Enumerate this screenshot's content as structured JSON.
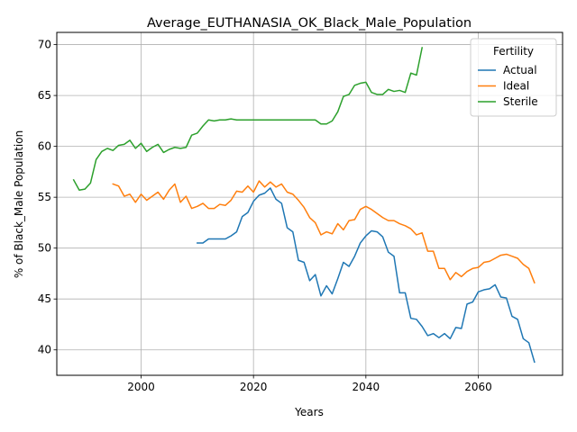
{
  "chart_data": {
    "type": "line",
    "title": "Average_EUTHANASIA_OK_Black_Male_Population",
    "xlabel": "Years",
    "ylabel": "% of Black_Male Population",
    "xlim": [
      1985,
      2075
    ],
    "ylim": [
      37.5,
      71.2
    ],
    "xticks": [
      2000,
      2020,
      2040,
      2060
    ],
    "yticks": [
      40,
      45,
      50,
      55,
      60,
      65,
      70
    ],
    "grid": true,
    "legend": {
      "title": "Fertility",
      "placement": "top-right"
    },
    "series": [
      {
        "name": "Actual",
        "color": "#1f77b4",
        "x": [
          2010,
          2011,
          2012,
          2013,
          2014,
          2015,
          2016,
          2017,
          2018,
          2019,
          2020,
          2021,
          2022,
          2023,
          2024,
          2025,
          2026,
          2027,
          2028,
          2029,
          2030,
          2031,
          2032,
          2033,
          2034,
          2035,
          2036,
          2037,
          2038,
          2039,
          2040,
          2041,
          2042,
          2043,
          2044,
          2045,
          2046,
          2047,
          2048,
          2049,
          2050,
          2051,
          2052,
          2053,
          2054,
          2055,
          2056,
          2057,
          2058,
          2059,
          2060,
          2061,
          2062,
          2063,
          2064,
          2065,
          2066,
          2067,
          2068,
          2069,
          2070
        ],
        "y": [
          50.5,
          50.5,
          50.9,
          50.9,
          50.9,
          50.9,
          51.2,
          51.6,
          53.1,
          53.5,
          54.6,
          55.2,
          55.4,
          55.9,
          54.8,
          54.4,
          52.0,
          51.6,
          48.8,
          48.6,
          46.8,
          47.4,
          45.3,
          46.3,
          45.5,
          47.0,
          48.6,
          48.2,
          49.2,
          50.5,
          51.2,
          51.7,
          51.6,
          51.1,
          49.6,
          49.2,
          45.6,
          45.6,
          43.1,
          43.0,
          42.3,
          41.4,
          41.6,
          41.2,
          41.6,
          41.1,
          42.2,
          42.1,
          44.5,
          44.7,
          45.7,
          45.9,
          46.0,
          46.4,
          45.2,
          45.1,
          43.3,
          43.0,
          41.1,
          40.7,
          38.8
        ]
      },
      {
        "name": "Ideal",
        "color": "#ff7f0e",
        "x": [
          1995,
          1996,
          1997,
          1998,
          1999,
          2000,
          2001,
          2002,
          2003,
          2004,
          2005,
          2006,
          2007,
          2008,
          2009,
          2010,
          2011,
          2012,
          2013,
          2014,
          2015,
          2016,
          2017,
          2018,
          2019,
          2020,
          2021,
          2022,
          2023,
          2024,
          2025,
          2026,
          2027,
          2028,
          2029,
          2030,
          2031,
          2032,
          2033,
          2034,
          2035,
          2036,
          2037,
          2038,
          2039,
          2040,
          2041,
          2042,
          2043,
          2044,
          2045,
          2046,
          2047,
          2048,
          2049,
          2050,
          2051,
          2052,
          2053,
          2054,
          2055,
          2056,
          2057,
          2058,
          2059,
          2060,
          2061,
          2062,
          2063,
          2064,
          2065,
          2066,
          2067,
          2068,
          2069,
          2070
        ],
        "y": [
          56.3,
          56.1,
          55.1,
          55.3,
          54.5,
          55.3,
          54.7,
          55.1,
          55.5,
          54.8,
          55.7,
          56.3,
          54.5,
          55.1,
          53.9,
          54.1,
          54.4,
          53.9,
          53.9,
          54.3,
          54.2,
          54.7,
          55.6,
          55.5,
          56.1,
          55.5,
          56.6,
          56.0,
          56.5,
          56.0,
          56.3,
          55.5,
          55.3,
          54.7,
          54.0,
          53.0,
          52.5,
          51.3,
          51.6,
          51.4,
          52.4,
          51.8,
          52.7,
          52.8,
          53.8,
          54.1,
          53.8,
          53.4,
          53.0,
          52.7,
          52.7,
          52.4,
          52.2,
          51.9,
          51.3,
          51.5,
          49.7,
          49.7,
          48.0,
          48.0,
          46.9,
          47.6,
          47.2,
          47.7,
          48.0,
          48.1,
          48.6,
          48.7,
          49.0,
          49.3,
          49.4,
          49.2,
          49.0,
          48.4,
          48.0,
          46.6
        ]
      },
      {
        "name": "Sterile",
        "color": "#2ca02c",
        "x": [
          1988,
          1989,
          1990,
          1991,
          1992,
          1993,
          1994,
          1995,
          1996,
          1997,
          1998,
          1999,
          2000,
          2001,
          2002,
          2003,
          2004,
          2005,
          2006,
          2007,
          2008,
          2009,
          2010,
          2011,
          2012,
          2013,
          2014,
          2015,
          2016,
          2017,
          2018,
          2019,
          2020,
          2021,
          2022,
          2023,
          2024,
          2025,
          2026,
          2027,
          2028,
          2029,
          2030,
          2031,
          2032,
          2033,
          2034,
          2035,
          2036,
          2037,
          2038,
          2039,
          2040,
          2041,
          2042,
          2043,
          2044,
          2045,
          2046,
          2047,
          2048,
          2049,
          2050
        ],
        "y": [
          56.7,
          55.7,
          55.8,
          56.4,
          58.7,
          59.5,
          59.8,
          59.6,
          60.1,
          60.2,
          60.6,
          59.8,
          60.3,
          59.5,
          59.9,
          60.2,
          59.4,
          59.7,
          59.9,
          59.8,
          59.9,
          61.1,
          61.3,
          62.0,
          62.6,
          62.5,
          62.6,
          62.6,
          62.7,
          62.6,
          62.6,
          62.6,
          62.6,
          62.6,
          62.6,
          62.6,
          62.6,
          62.6,
          62.6,
          62.6,
          62.6,
          62.6,
          62.6,
          62.6,
          62.2,
          62.2,
          62.5,
          63.4,
          64.9,
          65.1,
          66.0,
          66.2,
          66.3,
          65.3,
          65.1,
          65.1,
          65.6,
          65.4,
          65.5,
          65.3,
          67.2,
          67.0,
          69.7
        ]
      }
    ]
  }
}
